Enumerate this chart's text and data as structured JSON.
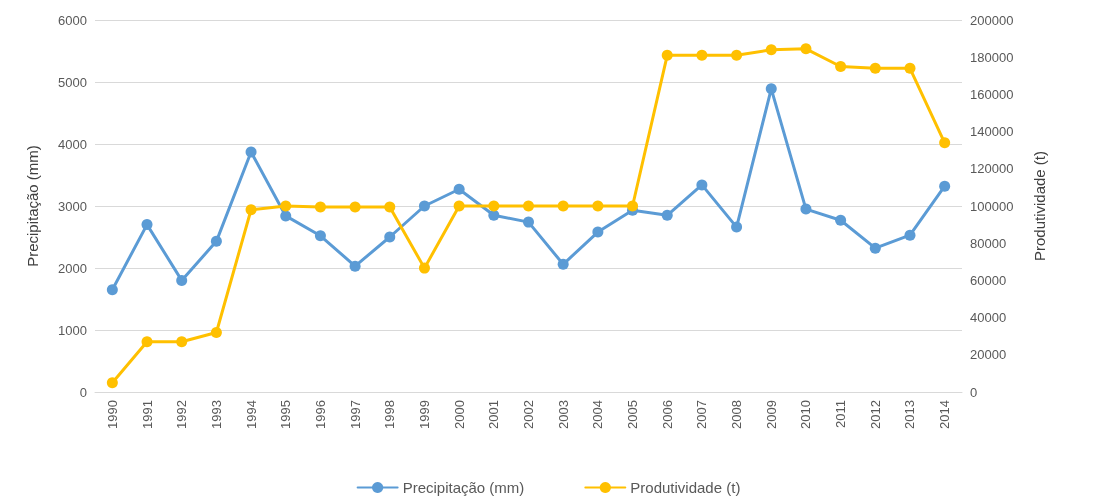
{
  "chart_data": {
    "type": "line",
    "categories": [
      "1990",
      "1991",
      "1992",
      "1993",
      "1994",
      "1995",
      "1996",
      "1997",
      "1998",
      "1999",
      "2000",
      "2001",
      "2002",
      "2003",
      "2004",
      "2005",
      "2006",
      "2007",
      "2008",
      "2009",
      "2010",
      "2011",
      "2012",
      "2013",
      "2014"
    ],
    "series": [
      {
        "name": "Precipitação (mm)",
        "color": "#5b9bd5",
        "values": [
          1650,
          2700,
          1800,
          2430,
          3870,
          2840,
          2520,
          2030,
          2500,
          3000,
          3270,
          2850,
          2740,
          2060,
          2580,
          2930,
          2850,
          3340,
          2660,
          4890,
          2950,
          2770,
          2320,
          2530,
          3320
        ]
      },
      {
        "name": "Produtividade (t)",
        "color": "#ffc000",
        "axis": "y2",
        "values": [
          5000,
          27000,
          27000,
          32000,
          98000,
          100000,
          99500,
          99500,
          99500,
          66600,
          100000,
          100000,
          100000,
          100000,
          100000,
          100000,
          181000,
          181000,
          181000,
          184000,
          184500,
          175000,
          174000,
          174000,
          134000
        ]
      }
    ],
    "ylabel": "Precipitação (mm)",
    "y2label": "Produtividade (t)",
    "ylim": [
      0,
      6000
    ],
    "yticks": [
      0,
      1000,
      2000,
      3000,
      4000,
      5000,
      6000
    ],
    "y2lim": [
      0,
      200000
    ],
    "y2ticks": [
      0,
      20000,
      40000,
      60000,
      80000,
      100000,
      120000,
      140000,
      160000,
      180000,
      200000
    ],
    "grid": "y",
    "legend": "bottom",
    "marker": "circle",
    "line_style": "solid"
  }
}
